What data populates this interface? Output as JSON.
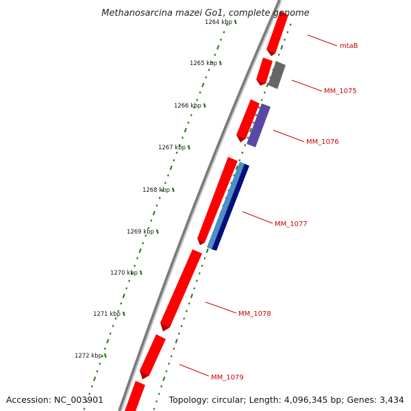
{
  "title": "Methanosarcina mazei Go1, complete genome",
  "accession": "Accession: NC_003901",
  "topology": "Topology: circular; Length: 4,096,345 bp; Genes: 3,434",
  "colors": {
    "backbone": "#777777",
    "cds_red": "#ff0000",
    "gc_green": "#2e7d1b",
    "gene_label": "#cc0000",
    "gray_feature": "#666666",
    "purple_feature": "#5b48a6",
    "light_blue_feature": "#4d8fc6",
    "navy_feature": "#00107a"
  },
  "kbp_labels": [
    "1264 kbp",
    "1265 kbp",
    "1266 kbp",
    "1267 kbp",
    "1268 kbp",
    "1269 kbp",
    "1270 kbp",
    "1271 kbp",
    "1272 kbp"
  ],
  "gene_labels": [
    "mtaB",
    "MM_1075",
    "MM_1076",
    "MM_1077",
    "MM_1078",
    "MM_1079"
  ]
}
